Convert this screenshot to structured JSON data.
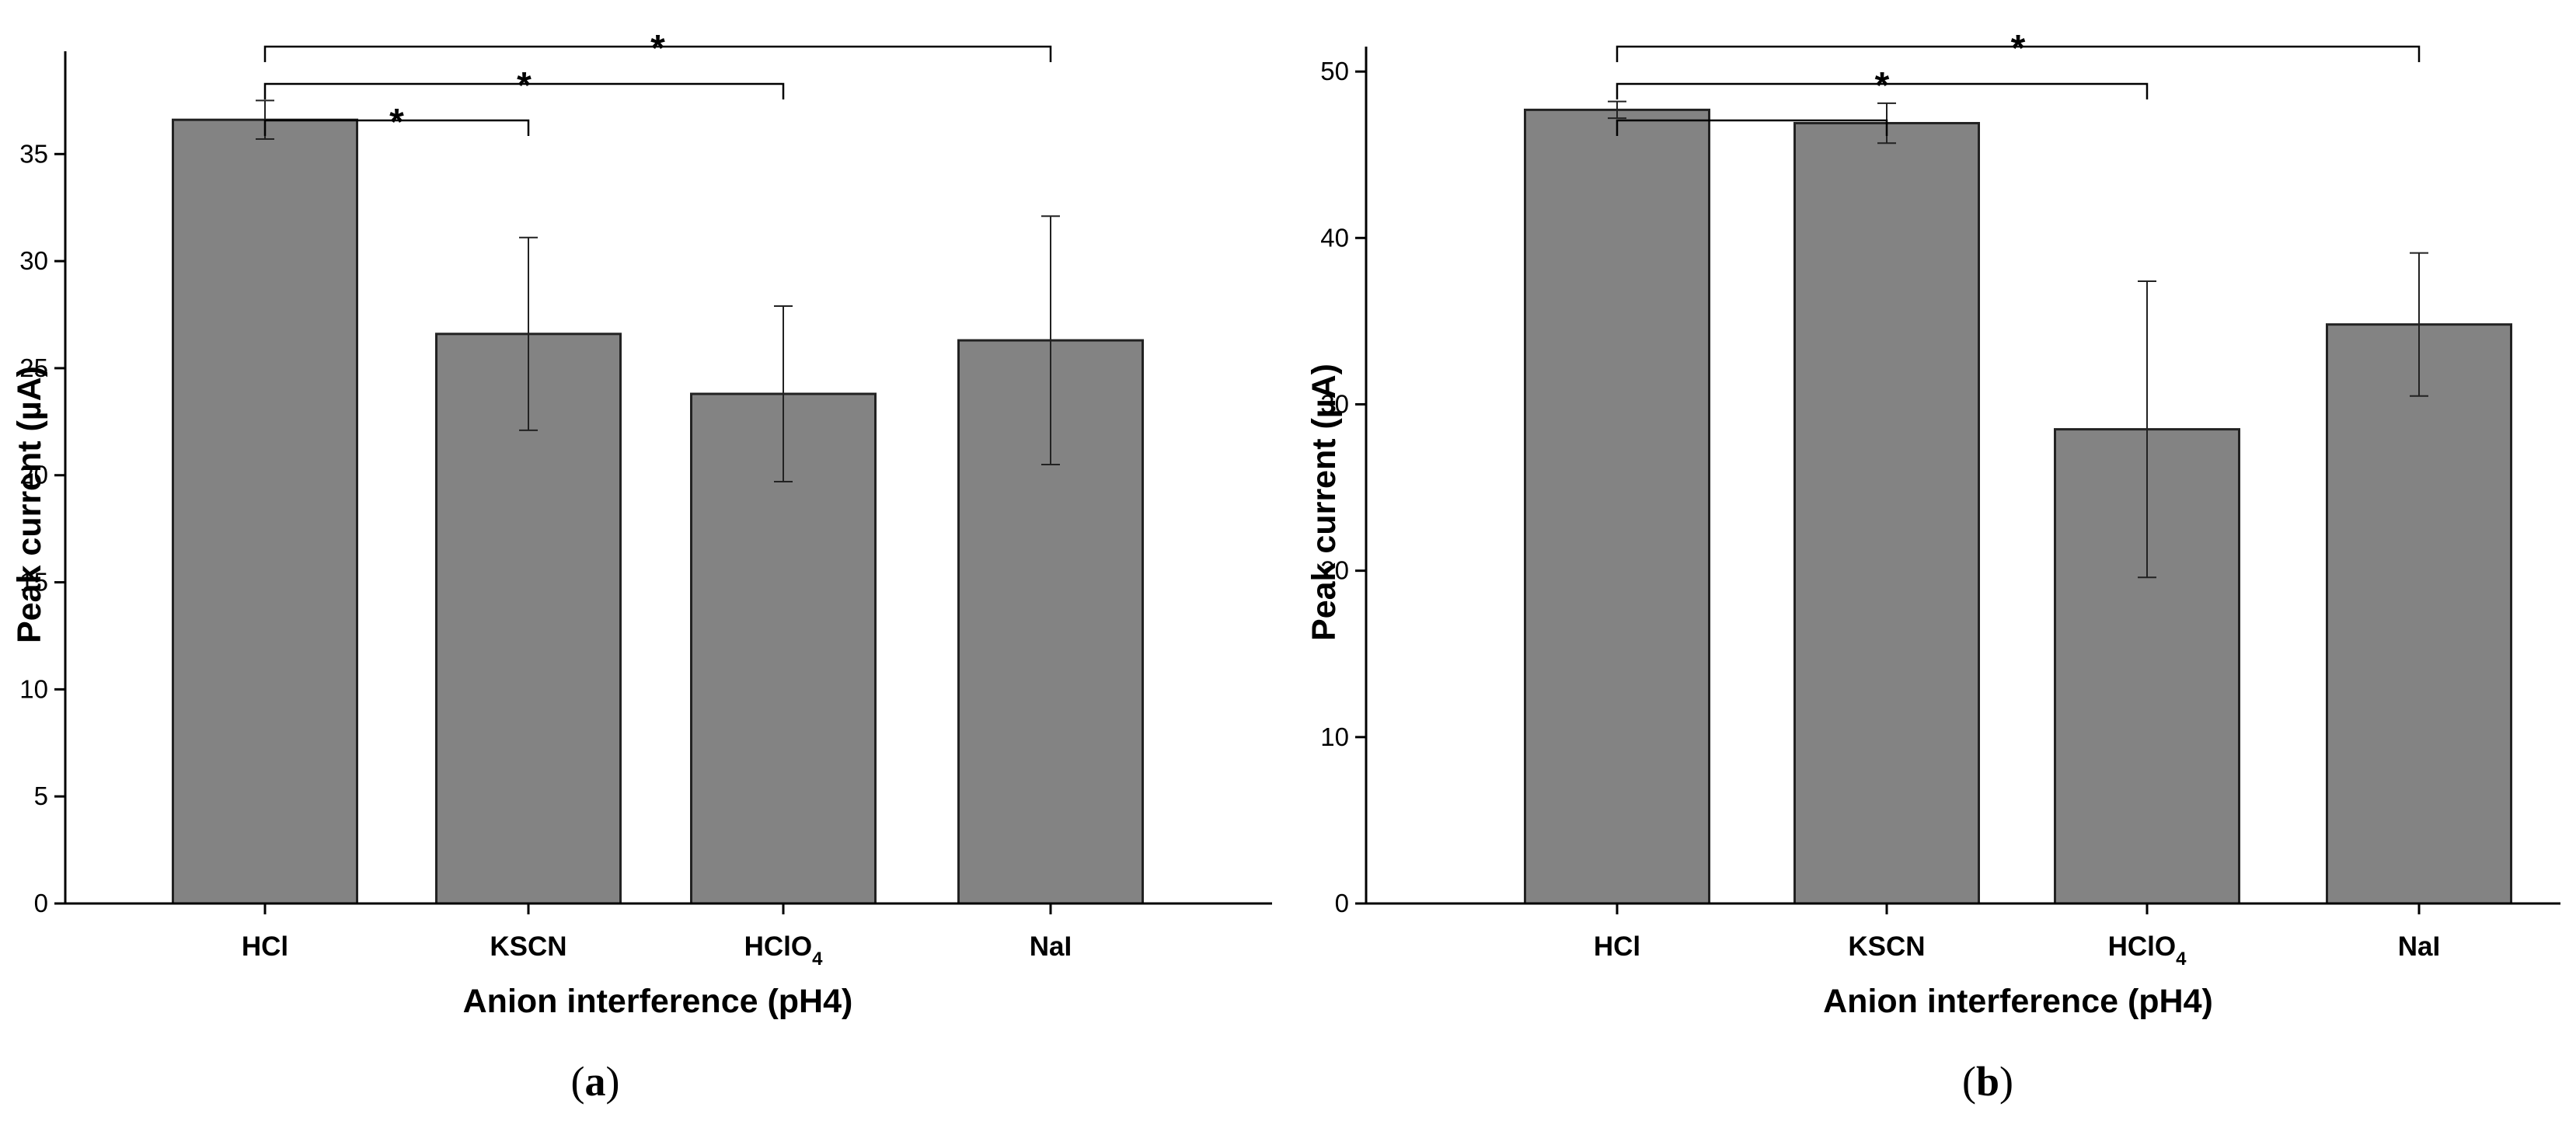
{
  "colors": {
    "bar": "#838383",
    "bar_stroke": "#222222",
    "axis": "#000000"
  },
  "chart_data": [
    {
      "type": "bar",
      "panel": "a",
      "caption_open": "(",
      "caption_letter": "a",
      "caption_close": ")",
      "categories": [
        "HCl",
        "KSCN",
        "HClO",
        "NaI"
      ],
      "category_subscripts": [
        "",
        "",
        "4",
        ""
      ],
      "values": [
        36.6,
        26.6,
        23.8,
        26.3
      ],
      "errors": [
        0.9,
        4.5,
        4.1,
        5.8
      ],
      "ylim": [
        0,
        39.8
      ],
      "yticks": [
        0,
        5,
        10,
        15,
        20,
        25,
        30,
        35
      ],
      "ylabel": "Peak current (µA)",
      "xlabel": "Anion interference (pH4)",
      "significance": [
        {
          "from": 0,
          "to": 1,
          "label": "*"
        },
        {
          "from": 0,
          "to": 2,
          "label": "*"
        },
        {
          "from": 0,
          "to": 3,
          "label": "*"
        }
      ]
    },
    {
      "type": "bar",
      "panel": "b",
      "caption_open": "(",
      "caption_letter": "b",
      "caption_close": ")",
      "categories": [
        "HCl",
        "KSCN",
        "HClO",
        "NaI"
      ],
      "category_subscripts": [
        "",
        "",
        "4",
        ""
      ],
      "values": [
        47.7,
        46.9,
        28.5,
        34.8
      ],
      "errors": [
        0.5,
        1.2,
        8.9,
        4.3
      ],
      "ylim": [
        0,
        51.5
      ],
      "yticks": [
        0,
        10,
        20,
        30,
        40,
        50
      ],
      "ylabel": "Peak current (µA)",
      "xlabel": "Anion interference (pH4)",
      "significance": [
        {
          "from": 0,
          "to": 1,
          "label": ""
        },
        {
          "from": 0,
          "to": 2,
          "label": "*"
        },
        {
          "from": 0,
          "to": 3,
          "label": "*"
        }
      ]
    }
  ]
}
